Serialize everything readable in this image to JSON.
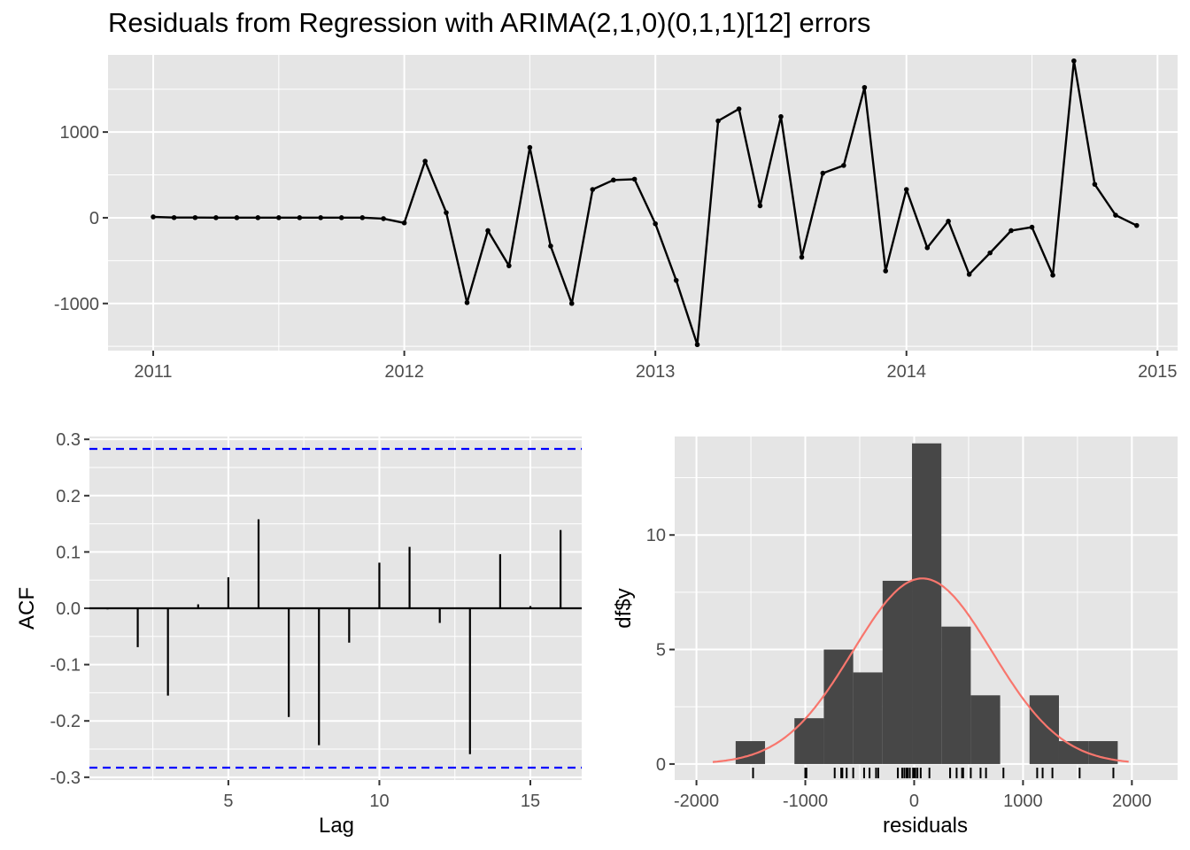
{
  "title": "Residuals from Regression with ARIMA(2,1,0)(0,1,1)[12] errors",
  "colors": {
    "panel": "#e5e5e5",
    "grid": "#ffffff",
    "line": "#000000",
    "ci": "#0000ff",
    "bars": "#474747",
    "density": "#f8766d"
  },
  "chart_data": [
    {
      "type": "line",
      "title": "Residuals from Regression with ARIMA(2,1,0)(0,1,1)[12] errors",
      "xlabel": "",
      "ylabel": "",
      "xlim": [
        2010.82,
        2015.08
      ],
      "ylim": [
        -1550,
        1900
      ],
      "x_ticks": [
        2011,
        2012,
        2013,
        2014,
        2015
      ],
      "y_ticks": [
        -1000,
        0,
        1000
      ],
      "grid": true,
      "markers": true,
      "series": [
        {
          "x": [
            2011.0,
            2011.083,
            2011.167,
            2011.25,
            2011.333,
            2011.417,
            2011.5,
            2011.583,
            2011.667,
            2011.75,
            2011.833,
            2011.917,
            2012.0,
            2012.083,
            2012.167,
            2012.25,
            2012.333,
            2012.417,
            2012.5,
            2012.583,
            2012.667,
            2012.75,
            2012.833,
            2012.917,
            2013.0,
            2013.083,
            2013.167,
            2013.25,
            2013.333,
            2013.417,
            2013.5,
            2013.583,
            2013.667,
            2013.75,
            2013.833,
            2013.917,
            2014.0,
            2014.083,
            2014.167,
            2014.25,
            2014.333,
            2014.417,
            2014.5,
            2014.583,
            2014.667,
            2014.75,
            2014.833,
            2014.917
          ],
          "values": [
            10,
            2,
            2,
            1,
            1,
            1,
            1,
            1,
            1,
            1,
            1,
            -10,
            -60,
            660,
            60,
            -990,
            -150,
            -560,
            820,
            -330,
            -1000,
            330,
            440,
            450,
            -70,
            -730,
            -1480,
            1130,
            1270,
            140,
            1180,
            -460,
            520,
            610,
            1520,
            -620,
            330,
            -350,
            -40,
            -660,
            -410,
            -150,
            -110,
            -670,
            1830,
            390,
            30,
            -90
          ]
        }
      ]
    },
    {
      "type": "bar",
      "subtype": "acf",
      "xlabel": "Lag",
      "ylabel": "ACF",
      "xlim": [
        0.4,
        16.7
      ],
      "ylim": [
        -0.305,
        0.305
      ],
      "x_ticks": [
        5,
        10,
        15
      ],
      "y_ticks": [
        -0.3,
        -0.2,
        -0.1,
        0.0,
        0.1,
        0.2,
        0.3
      ],
      "grid": true,
      "confidence_bounds": [
        -0.283,
        0.283
      ],
      "lags": [
        1,
        2,
        3,
        4,
        5,
        6,
        7,
        8,
        9,
        10,
        11,
        12,
        13,
        14,
        15,
        16
      ],
      "values": [
        -0.002,
        -0.069,
        -0.155,
        0.007,
        0.055,
        0.158,
        -0.193,
        -0.243,
        -0.061,
        0.081,
        0.109,
        -0.026,
        -0.259,
        0.096,
        0.004,
        0.139
      ]
    },
    {
      "type": "bar",
      "subtype": "histogram",
      "xlabel": "residuals",
      "ylabel": "df$y",
      "xlim": [
        -2200,
        2420
      ],
      "ylim": [
        -0.7,
        14.3
      ],
      "x_ticks": [
        -2000,
        -1000,
        0,
        1000,
        2000
      ],
      "y_ticks": [
        0,
        5,
        10
      ],
      "grid": true,
      "bin_edges": [
        -1640,
        -1370,
        -1100,
        -830,
        -560,
        -290,
        -20,
        250,
        520,
        790,
        1060,
        1330,
        1600,
        1870
      ],
      "counts": [
        1,
        0,
        2,
        5,
        4,
        8,
        14,
        6,
        3,
        0,
        3,
        1,
        1
      ],
      "density_curve": {
        "mean": 75,
        "sd": 640,
        "scale": 13000
      },
      "rug": [
        10,
        2,
        2,
        1,
        1,
        1,
        1,
        1,
        1,
        1,
        1,
        -10,
        -60,
        660,
        60,
        -990,
        -150,
        -560,
        820,
        -330,
        -1000,
        330,
        440,
        450,
        -70,
        -730,
        -1480,
        1130,
        1270,
        140,
        1180,
        -460,
        520,
        610,
        1520,
        -620,
        330,
        -350,
        -40,
        -660,
        -410,
        -150,
        -110,
        -670,
        1830,
        390,
        30,
        -90
      ]
    }
  ]
}
